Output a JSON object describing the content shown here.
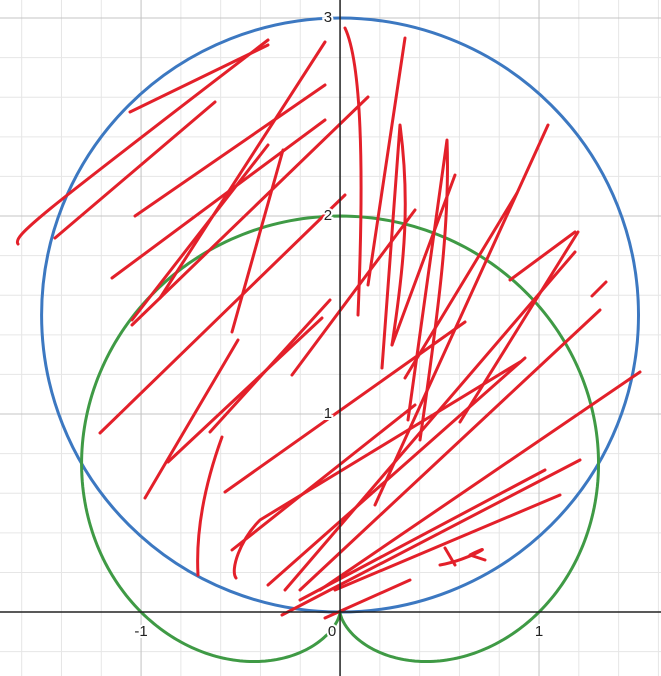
{
  "chart_data": {
    "type": "polar",
    "xlim": [
      -1.709,
      1.613
    ],
    "ylim": [
      -0.323,
      3.091
    ],
    "xticks": [
      -1,
      0,
      1
    ],
    "yticks": [
      1,
      2,
      3
    ],
    "grid": true,
    "series": [
      {
        "curve": "circle",
        "color": "#3c78c1",
        "center": [
          0,
          1.5
        ],
        "radius": 1.5
      },
      {
        "curve": "cardioid",
        "color": "#3f9a45",
        "a": 1
      }
    ]
  }
}
